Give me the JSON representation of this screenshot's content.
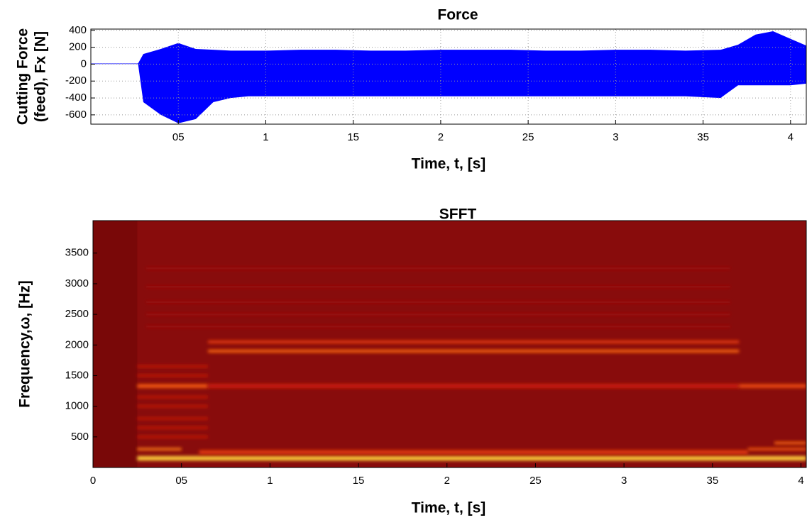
{
  "chart_data": [
    {
      "type": "band",
      "title": "Force",
      "ylabel": [
        "Cutting Force",
        "(feed), Fx [N]"
      ],
      "xlabel": "Time, t, [s]",
      "color": "#0000ff",
      "grid": true,
      "x": [
        0,
        0.1,
        0.2,
        0.27,
        0.3,
        0.4,
        0.5,
        0.6,
        0.7,
        0.8,
        0.9,
        1.0,
        1.2,
        1.4,
        1.6,
        1.8,
        2.0,
        2.2,
        2.4,
        2.6,
        2.8,
        3.0,
        3.2,
        3.4,
        3.6,
        3.7,
        3.8,
        3.9,
        4.0,
        4.09
      ],
      "upper": [
        8,
        8,
        8,
        8,
        120,
        180,
        250,
        180,
        170,
        160,
        160,
        160,
        170,
        170,
        160,
        160,
        170,
        170,
        170,
        160,
        160,
        170,
        170,
        160,
        170,
        230,
        350,
        390,
        300,
        220
      ],
      "lower": [
        2,
        2,
        2,
        2,
        -450,
        -600,
        -700,
        -650,
        -450,
        -400,
        -380,
        -380,
        -380,
        -380,
        -380,
        -380,
        -380,
        -380,
        -380,
        -380,
        -380,
        -380,
        -380,
        -380,
        -400,
        -250,
        -250,
        -250,
        -250,
        -230
      ],
      "xlim": [
        0,
        4.09
      ],
      "ylim": [
        -710,
        415
      ],
      "xticks": [
        {
          "value": 0.5,
          "label": "05"
        },
        1,
        {
          "value": 1.5,
          "label": "15"
        },
        2,
        {
          "value": 2.5,
          "label": "25"
        },
        3,
        {
          "value": 3.5,
          "label": "35"
        },
        4
      ],
      "yticks": [
        400,
        200,
        0,
        -200,
        -400,
        -600
      ]
    },
    {
      "type": "spectrogram",
      "title": "SFFT",
      "ylabel": "Frequency,ω, [Hz]",
      "xlabel": "Time, t, [s]",
      "colormap": [
        "#5a0000",
        "#8e0e0e",
        "#d81e0e",
        "#ff6a10",
        "#ffd23a"
      ],
      "background": 0.22,
      "bands": [
        {
          "t0": 0,
          "t1": 0.25,
          "f": 2015,
          "bandwidth": 4030,
          "level": 0.15
        },
        {
          "t0": 0.25,
          "t1": 4.03,
          "f": 150,
          "bandwidth": 70,
          "level": 1.0
        },
        {
          "t0": 0.6,
          "t1": 3.7,
          "f": 250,
          "bandwidth": 60,
          "level": 0.6
        },
        {
          "t0": 0.25,
          "t1": 0.5,
          "f": 300,
          "bandwidth": 40,
          "level": 0.8
        },
        {
          "t0": 3.7,
          "t1": 4.03,
          "f": 300,
          "bandwidth": 40,
          "level": 0.7
        },
        {
          "t0": 3.85,
          "t1": 4.03,
          "f": 400,
          "bandwidth": 40,
          "level": 0.75
        },
        {
          "t0": 0.65,
          "t1": 3.65,
          "f": 1900,
          "bandwidth": 45,
          "level": 0.75
        },
        {
          "t0": 0.65,
          "t1": 3.65,
          "f": 2050,
          "bandwidth": 45,
          "level": 0.6
        },
        {
          "t0": 0.25,
          "t1": 0.65,
          "f": 1330,
          "bandwidth": 60,
          "level": 0.7
        },
        {
          "t0": 0.65,
          "t1": 3.65,
          "f": 1330,
          "bandwidth": 70,
          "level": 0.45
        },
        {
          "t0": 3.65,
          "t1": 4.03,
          "f": 1330,
          "bandwidth": 60,
          "level": 0.65
        },
        {
          "t0": 0.25,
          "t1": 0.65,
          "f": 500,
          "bandwidth": 35,
          "level": 0.45
        },
        {
          "t0": 0.25,
          "t1": 0.65,
          "f": 650,
          "bandwidth": 35,
          "level": 0.45
        },
        {
          "t0": 0.25,
          "t1": 0.65,
          "f": 800,
          "bandwidth": 35,
          "level": 0.45
        },
        {
          "t0": 0.25,
          "t1": 0.65,
          "f": 1000,
          "bandwidth": 35,
          "level": 0.45
        },
        {
          "t0": 0.25,
          "t1": 0.65,
          "f": 1150,
          "bandwidth": 35,
          "level": 0.45
        },
        {
          "t0": 0.25,
          "t1": 0.65,
          "f": 1500,
          "bandwidth": 35,
          "level": 0.45
        },
        {
          "t0": 0.25,
          "t1": 0.65,
          "f": 1650,
          "bandwidth": 35,
          "level": 0.45
        },
        {
          "t0": 0.3,
          "t1": 3.6,
          "f": 2300,
          "bandwidth": 40,
          "level": 0.3
        },
        {
          "t0": 0.3,
          "t1": 3.6,
          "f": 2500,
          "bandwidth": 40,
          "level": 0.3
        },
        {
          "t0": 0.3,
          "t1": 3.6,
          "f": 2700,
          "bandwidth": 40,
          "level": 0.3
        },
        {
          "t0": 0.3,
          "t1": 3.6,
          "f": 2950,
          "bandwidth": 40,
          "level": 0.3
        },
        {
          "t0": 0.3,
          "t1": 3.6,
          "f": 3250,
          "bandwidth": 40,
          "level": 0.3
        }
      ],
      "xlim": [
        0,
        4.03
      ],
      "ylim": [
        0,
        4030
      ],
      "xticks": [
        0,
        {
          "value": 0.5,
          "label": "05"
        },
        1,
        {
          "value": 1.5,
          "label": "15"
        },
        2,
        {
          "value": 2.5,
          "label": "25"
        },
        3,
        {
          "value": 3.5,
          "label": "35"
        },
        4
      ],
      "yticks": [
        500,
        1000,
        1500,
        2000,
        2500,
        3000,
        3500
      ]
    }
  ]
}
